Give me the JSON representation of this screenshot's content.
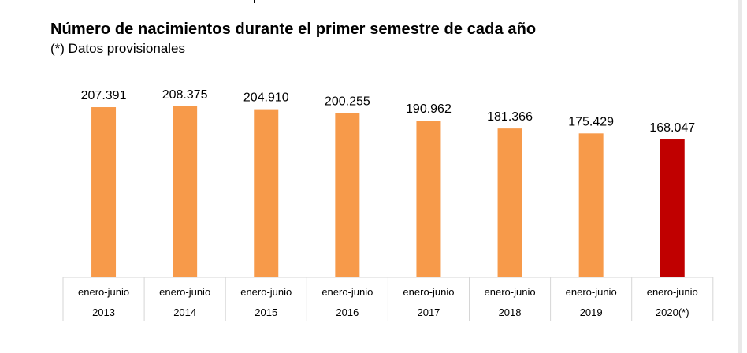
{
  "title": "Número de nacimientos durante el primer semestre de cada año",
  "subtitle": "(*) Datos provisionales",
  "colors": {
    "bar": "#f79a4a",
    "highlight": "#c00000",
    "grid": "#d6d6d6"
  },
  "chart_data": {
    "type": "bar",
    "title": "Número de nacimientos durante el primer semestre de cada año",
    "subtitle": "(*) Datos provisionales",
    "categories": [
      [
        "enero-junio",
        "2013"
      ],
      [
        "enero-junio",
        "2014"
      ],
      [
        "enero-junio",
        "2015"
      ],
      [
        "enero-junio",
        "2016"
      ],
      [
        "enero-junio",
        "2017"
      ],
      [
        "enero-junio",
        "2018"
      ],
      [
        "enero-junio",
        "2019"
      ],
      [
        "enero-junio",
        "2020(*)"
      ]
    ],
    "values": [
      207391,
      208375,
      204910,
      200255,
      190962,
      181366,
      175429,
      168047
    ],
    "value_labels": [
      "207.391",
      "208.375",
      "204.910",
      "200.255",
      "190.962",
      "181.366",
      "175.429",
      "168.047"
    ],
    "highlight_index": 7,
    "ylim": [
      0,
      236000
    ],
    "xlabel": "",
    "ylabel": "",
    "grid": false,
    "legend": "none"
  }
}
